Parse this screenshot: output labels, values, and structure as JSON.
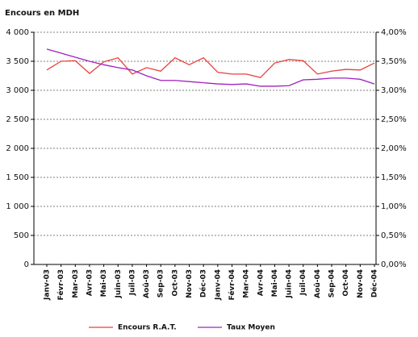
{
  "chart_data": {
    "type": "line",
    "title": "Encours en MDH",
    "categories": [
      "Janv-03",
      "Févr-03",
      "Mar-03",
      "Avr-03",
      "Mai-03",
      "Juin-03",
      "Juil-03",
      "Aoû-03",
      "Sep-03",
      "Oct-03",
      "Nov-03",
      "Déc-03",
      "Janv-04",
      "Févr-04",
      "Mar-04",
      "Avr-04",
      "Mai-04",
      "Juin-04",
      "Juil-04",
      "Aoû-04",
      "Sep-04",
      "Oct-04",
      "Nov-04",
      "Déc-04"
    ],
    "series": [
      {
        "name": "Encours R.A.T.",
        "color": "#e8403a",
        "values": [
          3350,
          3500,
          3510,
          3290,
          3490,
          3560,
          3280,
          3390,
          3330,
          3560,
          3440,
          3560,
          3310,
          3280,
          3280,
          3220,
          3470,
          3530,
          3510,
          3280,
          3330,
          3360,
          3350,
          3470
        ]
      },
      {
        "name": "Taux Moyen",
        "color": "#a020c0",
        "axis": "y2",
        "values": [
          3.71,
          3.64,
          3.57,
          3.5,
          3.44,
          3.39,
          3.35,
          3.25,
          3.17,
          3.17,
          3.15,
          3.13,
          3.11,
          3.1,
          3.11,
          3.07,
          3.07,
          3.08,
          3.18,
          3.19,
          3.21,
          3.21,
          3.19,
          3.11
        ]
      }
    ],
    "ylim": [
      0,
      4000
    ],
    "yticks": [
      0,
      500,
      {
        "value": 1000,
        "label": "1 000"
      },
      {
        "value": 1500,
        "label": "1 500"
      },
      {
        "value": 2000,
        "label": "2 000"
      },
      {
        "value": 2500,
        "label": "2 500"
      },
      {
        "value": 3000,
        "label": "3 000"
      },
      {
        "value": 3500,
        "label": "3 500"
      },
      {
        "value": 4000,
        "label": "4 000"
      }
    ],
    "y2lim": [
      0,
      4
    ],
    "y2ticks": [
      {
        "value": 0,
        "label": "0,00%"
      },
      {
        "value": 0.5,
        "label": "0,50%"
      },
      {
        "value": 1,
        "label": "1,00%"
      },
      {
        "value": 1.5,
        "label": "1,50%"
      },
      {
        "value": 2,
        "label": "2,00%"
      },
      {
        "value": 2.5,
        "label": "2,50%"
      },
      {
        "value": 3,
        "label": "3,00%"
      },
      {
        "value": 3.5,
        "label": "3,50%"
      },
      {
        "value": 4,
        "label": "4,00%"
      }
    ],
    "grid": true,
    "legend": "bottom"
  }
}
